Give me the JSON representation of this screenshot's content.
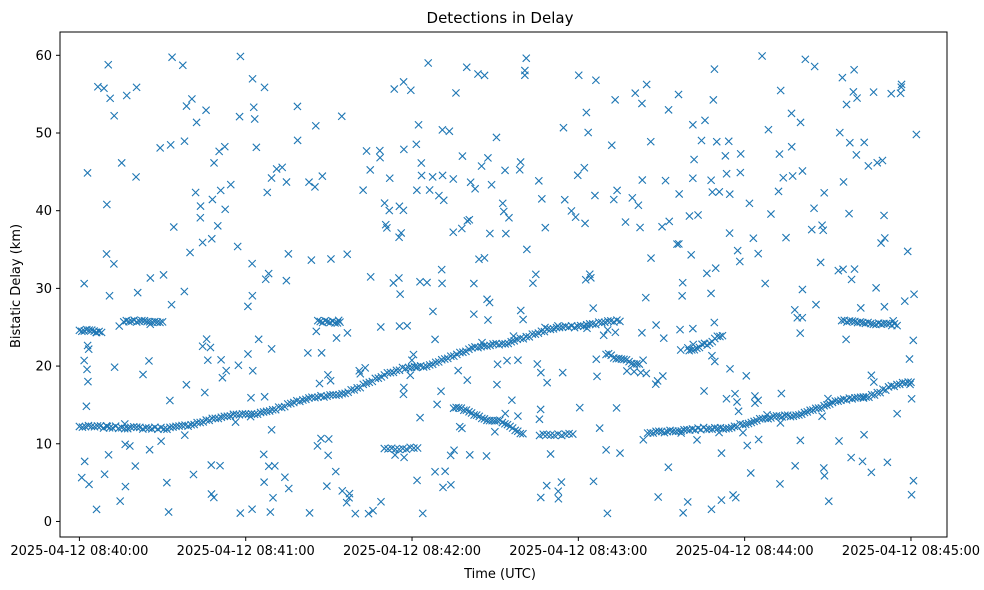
{
  "chart_data": {
    "type": "scatter",
    "title": "Detections in Delay",
    "xlabel": "Time (UTC)",
    "ylabel": "Bistatic Delay (km)",
    "marker": "x",
    "color": "#1f77b4",
    "xlim_seconds": [
      -7,
      313
    ],
    "ylim": [
      -2,
      63
    ],
    "x_ticks": [
      {
        "seconds": 0,
        "label": "2025-04-12 08:40:00"
      },
      {
        "seconds": 60,
        "label": "2025-04-12 08:41:00"
      },
      {
        "seconds": 120,
        "label": "2025-04-12 08:42:00"
      },
      {
        "seconds": 180,
        "label": "2025-04-12 08:43:00"
      },
      {
        "seconds": 240,
        "label": "2025-04-12 08:44:00"
      },
      {
        "seconds": 300,
        "label": "2025-04-12 08:45:00"
      }
    ],
    "y_ticks": [
      0,
      10,
      20,
      30,
      40,
      50,
      60
    ],
    "tracks": [
      {
        "name": "track-main-rising",
        "x_start": 0,
        "x_end": 195,
        "points": 180,
        "y_knots": [
          [
            0,
            12.2
          ],
          [
            30,
            12.0
          ],
          [
            60,
            13.8
          ],
          [
            90,
            16.2
          ],
          [
            120,
            19.8
          ],
          [
            150,
            22.8
          ],
          [
            175,
            25.0
          ],
          [
            195,
            25.8
          ]
        ]
      },
      {
        "name": "track-late-rising",
        "x_start": 205,
        "x_end": 300,
        "points": 95,
        "y_knots": [
          [
            205,
            11.5
          ],
          [
            230,
            12.0
          ],
          [
            255,
            13.6
          ],
          [
            280,
            15.8
          ],
          [
            300,
            18.0
          ]
        ]
      },
      {
        "name": "track-arc-center",
        "x_start": 135,
        "x_end": 160,
        "points": 28,
        "y_knots": [
          [
            135,
            14.6
          ],
          [
            150,
            13.0
          ],
          [
            160,
            11.4
          ]
        ]
      },
      {
        "name": "track-dip-right",
        "x_start": 190,
        "x_end": 202,
        "points": 14,
        "y_knots": [
          [
            190,
            21.5
          ],
          [
            196,
            20.8
          ],
          [
            202,
            20.2
          ]
        ]
      },
      {
        "name": "track-wedge-right",
        "x_start": 220,
        "x_end": 232,
        "points": 14,
        "y_knots": [
          [
            220,
            22.0
          ],
          [
            226,
            22.8
          ],
          [
            232,
            24.0
          ]
        ]
      },
      {
        "name": "track-flat-left-a",
        "x_start": 16,
        "x_end": 30,
        "points": 16,
        "y_knots": [
          [
            16,
            25.8
          ],
          [
            30,
            25.6
          ]
        ]
      },
      {
        "name": "track-flat-left-b",
        "x_start": 0,
        "x_end": 8,
        "points": 10,
        "y_knots": [
          [
            0,
            24.6
          ],
          [
            8,
            24.4
          ]
        ]
      },
      {
        "name": "track-flat-mid",
        "x_start": 86,
        "x_end": 94,
        "points": 10,
        "y_knots": [
          [
            86,
            25.7
          ],
          [
            94,
            25.7
          ]
        ]
      },
      {
        "name": "track-flat-right",
        "x_start": 275,
        "x_end": 295,
        "points": 22,
        "y_knots": [
          [
            275,
            25.8
          ],
          [
            295,
            25.3
          ]
        ]
      },
      {
        "name": "track-flat-low-a",
        "x_start": 110,
        "x_end": 122,
        "points": 10,
        "y_knots": [
          [
            110,
            9.4
          ],
          [
            122,
            9.4
          ]
        ]
      },
      {
        "name": "track-flat-low-b",
        "x_start": 166,
        "x_end": 178,
        "points": 10,
        "y_knots": [
          [
            166,
            11.2
          ],
          [
            178,
            11.2
          ]
        ]
      }
    ],
    "noise": {
      "count": 520,
      "x_range": [
        0,
        302
      ],
      "y_range": [
        1,
        60
      ],
      "seed": 7
    }
  }
}
